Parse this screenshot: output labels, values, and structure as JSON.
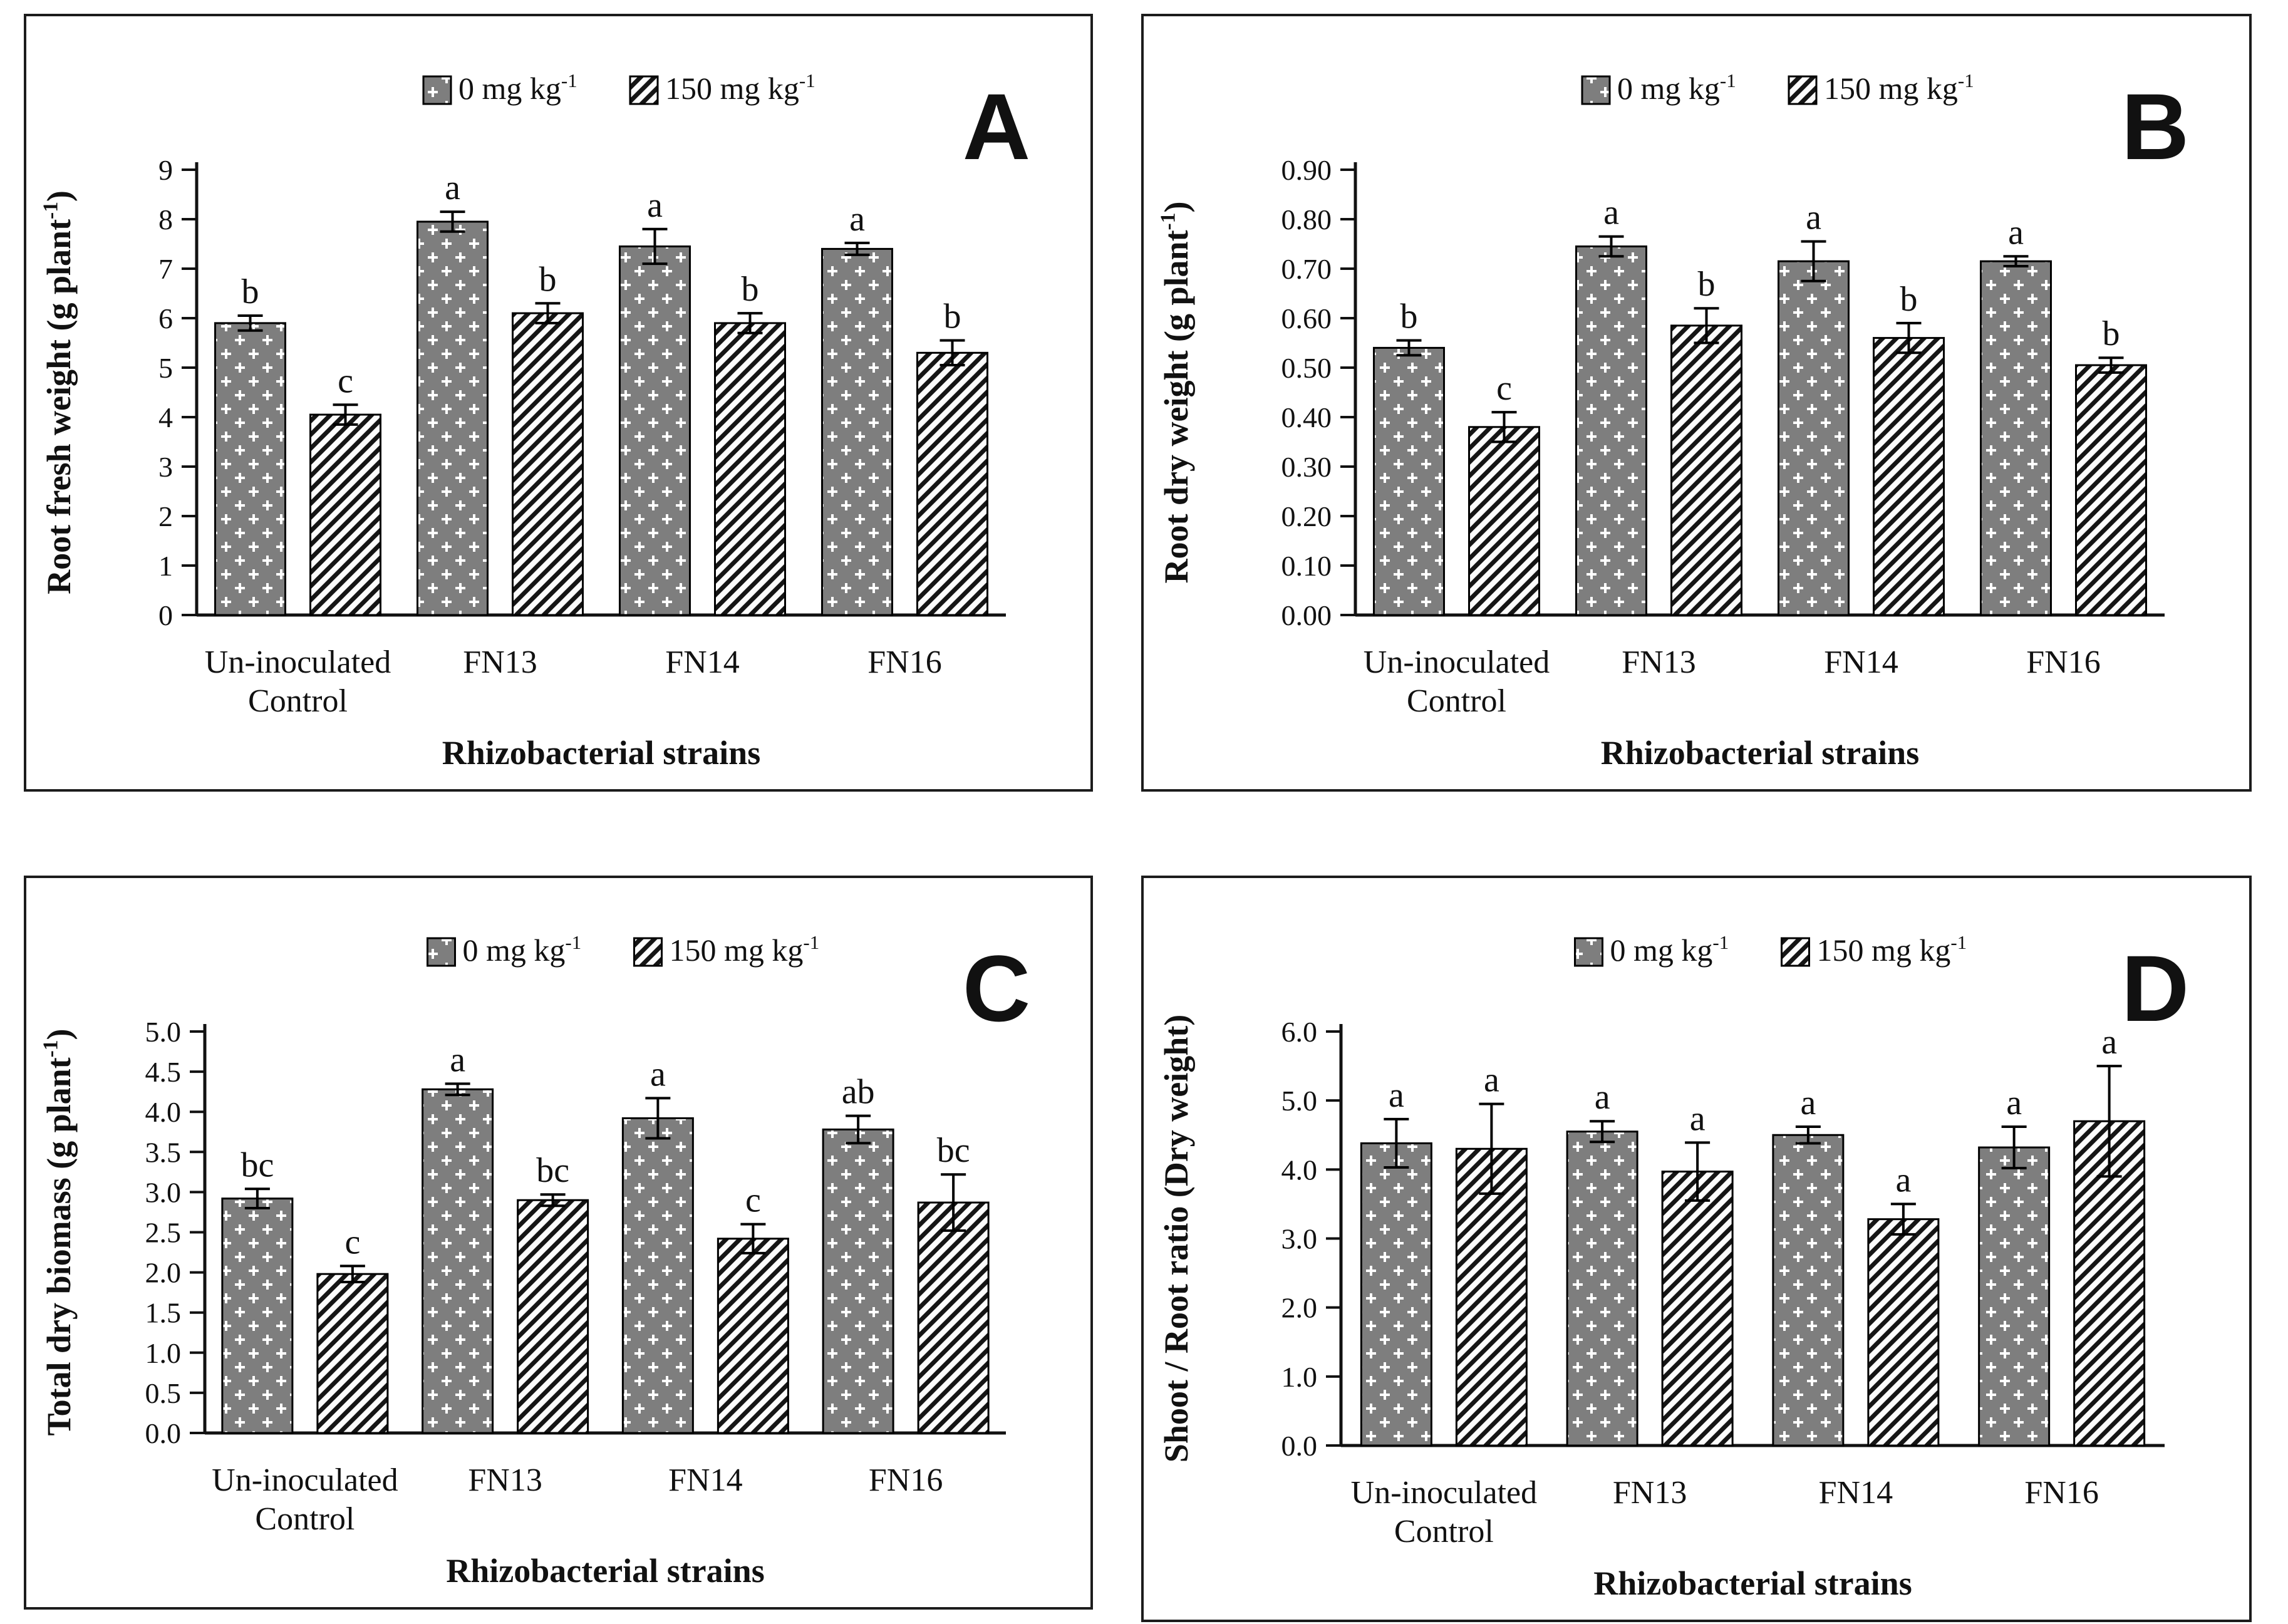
{
  "figure": {
    "background": "#ffffff",
    "outline_color": "#1c1c1c",
    "bar_colors": {
      "dotted_grid_base": "#7e7e7e",
      "dotted_grid_dots": "#ffffff",
      "stripe_color": "#151515",
      "stripe_background": "#fcfcfc",
      "bar_outline": "#000000"
    },
    "legend_labels": [
      "0 mg kg⁻¹",
      "150 mg kg⁻¹"
    ],
    "panel_letters": [
      "A",
      "B",
      "C",
      "D"
    ]
  },
  "chart_data": [
    {
      "type": "bar",
      "panel_letter": "A",
      "ylabel": "Root fresh weight (g plant⁻¹)",
      "xlabel": "Rhizobacterial strains",
      "ylim": [
        0,
        9
      ],
      "yticks": [
        "0",
        "1",
        "2",
        "3",
        "4",
        "5",
        "6",
        "7",
        "8",
        "9"
      ],
      "grid": false,
      "legend_position": "top-center",
      "categories": [
        [
          "Un-inoculated",
          "Control"
        ],
        [
          "FN13"
        ],
        [
          "FN14"
        ],
        [
          "FN16"
        ]
      ],
      "series": [
        {
          "name": "0 mg kg⁻¹",
          "pattern": "dotted-grid",
          "values": [
            5.9,
            7.95,
            7.45,
            7.4
          ],
          "errors": [
            0.15,
            0.2,
            0.35,
            0.12
          ],
          "sig_letters": [
            "b",
            "a",
            "a",
            "a"
          ]
        },
        {
          "name": "150 mg kg⁻¹",
          "pattern": "diagonal-stripes",
          "values": [
            4.05,
            6.1,
            5.9,
            5.3
          ],
          "errors": [
            0.2,
            0.2,
            0.2,
            0.25
          ],
          "sig_letters": [
            "c",
            "b",
            "b",
            "b"
          ]
        }
      ]
    },
    {
      "type": "bar",
      "panel_letter": "B",
      "ylabel": "Root dry weight (g plant⁻¹)",
      "xlabel": "Rhizobacterial strains",
      "ylim": [
        0,
        0.9
      ],
      "yticks": [
        "0.00",
        "0.10",
        "0.20",
        "0.30",
        "0.40",
        "0.50",
        "0.60",
        "0.70",
        "0.80",
        "0.90"
      ],
      "grid": false,
      "legend_position": "top-center",
      "categories": [
        [
          "Un-inoculated",
          "Control"
        ],
        [
          "FN13"
        ],
        [
          "FN14"
        ],
        [
          "FN16"
        ]
      ],
      "series": [
        {
          "name": "0 mg kg⁻¹",
          "pattern": "dotted-grid",
          "values": [
            0.54,
            0.745,
            0.715,
            0.715
          ],
          "errors": [
            0.015,
            0.02,
            0.04,
            0.01
          ],
          "sig_letters": [
            "b",
            "a",
            "a",
            "a"
          ]
        },
        {
          "name": "150 mg kg⁻¹",
          "pattern": "diagonal-stripes",
          "values": [
            0.38,
            0.585,
            0.56,
            0.505
          ],
          "errors": [
            0.03,
            0.035,
            0.03,
            0.015
          ],
          "sig_letters": [
            "c",
            "b",
            "b",
            "b"
          ]
        }
      ]
    },
    {
      "type": "bar",
      "panel_letter": "C",
      "ylabel": "Total dry biomass (g plant⁻¹)",
      "xlabel": "Rhizobacterial strains",
      "ylim": [
        0,
        5
      ],
      "yticks": [
        "0.0",
        "0.5",
        "1.0",
        "1.5",
        "2.0",
        "2.5",
        "3.0",
        "3.5",
        "4.0",
        "4.5",
        "5.0"
      ],
      "grid": false,
      "legend_position": "top-center",
      "categories": [
        [
          "Un-inoculated",
          "Control"
        ],
        [
          "FN13"
        ],
        [
          "FN14"
        ],
        [
          "FN16"
        ]
      ],
      "series": [
        {
          "name": "0 mg kg⁻¹",
          "pattern": "dotted-grid",
          "values": [
            2.92,
            4.28,
            3.92,
            3.78
          ],
          "errors": [
            0.12,
            0.07,
            0.25,
            0.17
          ],
          "sig_letters": [
            "bc",
            "a",
            "a",
            "ab"
          ]
        },
        {
          "name": "150 mg kg⁻¹",
          "pattern": "diagonal-stripes",
          "values": [
            1.98,
            2.9,
            2.42,
            2.87
          ],
          "errors": [
            0.1,
            0.07,
            0.18,
            0.35
          ],
          "sig_letters": [
            "c",
            "bc",
            "c",
            "bc"
          ]
        }
      ]
    },
    {
      "type": "bar",
      "panel_letter": "D",
      "ylabel": "Shoot / Root ratio (Dry weight)",
      "xlabel": "Rhizobacterial strains",
      "ylim": [
        0,
        6
      ],
      "yticks": [
        "0.0",
        "1.0",
        "2.0",
        "3.0",
        "4.0",
        "5.0",
        "6.0"
      ],
      "grid": false,
      "legend_position": "top-center",
      "categories": [
        [
          "Un-inoculated",
          "Control"
        ],
        [
          "FN13"
        ],
        [
          "FN14"
        ],
        [
          "FN16"
        ]
      ],
      "series": [
        {
          "name": "0 mg kg⁻¹",
          "pattern": "dotted-grid",
          "values": [
            4.38,
            4.55,
            4.5,
            4.32
          ],
          "errors": [
            0.35,
            0.15,
            0.12,
            0.3
          ],
          "sig_letters": [
            "a",
            "a",
            "a",
            "a"
          ]
        },
        {
          "name": "150 mg kg⁻¹",
          "pattern": "diagonal-stripes",
          "values": [
            4.3,
            3.97,
            3.28,
            4.7
          ],
          "errors": [
            0.65,
            0.42,
            0.22,
            0.8
          ],
          "sig_letters": [
            "a",
            "a",
            "a",
            "a"
          ]
        }
      ]
    }
  ]
}
